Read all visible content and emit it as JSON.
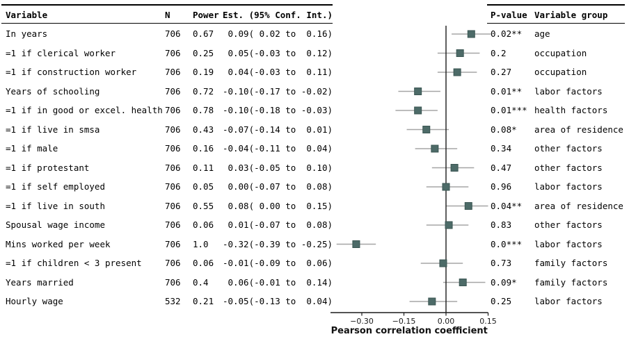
{
  "left_table": {
    "headers": {
      "variable": "Variable",
      "n": "N",
      "power": "Power",
      "est": "Est. (95% Conf. Int.)"
    }
  },
  "right_table": {
    "headers": {
      "pvalue": "P-value",
      "group": "Variable group"
    }
  },
  "rows": [
    {
      "variable": "In years",
      "n": "706",
      "power": "0.67",
      "est": " 0.09( 0.02 to  0.16)",
      "pvalue": "0.02**",
      "group": "age"
    },
    {
      "variable": "=1 if clerical worker",
      "n": "706",
      "power": "0.25",
      "est": " 0.05(-0.03 to  0.12)",
      "pvalue": "0.2",
      "group": "occupation"
    },
    {
      "variable": "=1 if construction worker",
      "n": "706",
      "power": "0.19",
      "est": " 0.04(-0.03 to  0.11)",
      "pvalue": "0.27",
      "group": "occupation"
    },
    {
      "variable": "Years of schooling",
      "n": "706",
      "power": "0.72",
      "est": "-0.10(-0.17 to -0.02)",
      "pvalue": "0.01**",
      "group": "labor factors"
    },
    {
      "variable": "=1 if in good or excel. health",
      "n": "706",
      "power": "0.78",
      "est": "-0.10(-0.18 to -0.03)",
      "pvalue": "0.01***",
      "group": "health factors"
    },
    {
      "variable": "=1 if live in smsa",
      "n": "706",
      "power": "0.43",
      "est": "-0.07(-0.14 to  0.01)",
      "pvalue": "0.08*",
      "group": "area of residence"
    },
    {
      "variable": "=1 if male",
      "n": "706",
      "power": "0.16",
      "est": "-0.04(-0.11 to  0.04)",
      "pvalue": "0.34",
      "group": "other factors"
    },
    {
      "variable": "=1 if protestant",
      "n": "706",
      "power": "0.11",
      "est": " 0.03(-0.05 to  0.10)",
      "pvalue": "0.47",
      "group": "other factors"
    },
    {
      "variable": "=1 if self employed",
      "n": "706",
      "power": "0.05",
      "est": " 0.00(-0.07 to  0.08)",
      "pvalue": "0.96",
      "group": "labor factors"
    },
    {
      "variable": "=1 if live in south",
      "n": "706",
      "power": "0.55",
      "est": " 0.08( 0.00 to  0.15)",
      "pvalue": "0.04**",
      "group": "area of residence"
    },
    {
      "variable": "Spousal wage income",
      "n": "706",
      "power": "0.06",
      "est": " 0.01(-0.07 to  0.08)",
      "pvalue": "0.83",
      "group": "other factors"
    },
    {
      "variable": "Mins worked per week",
      "n": "706",
      "power": "1.0",
      "est": "-0.32(-0.39 to -0.25)",
      "pvalue": "0.0***",
      "group": "labor factors"
    },
    {
      "variable": "=1 if children < 3 present",
      "n": "706",
      "power": "0.06",
      "est": "-0.01(-0.09 to  0.06)",
      "pvalue": "0.73",
      "group": "family factors"
    },
    {
      "variable": "Years married",
      "n": "706",
      "power": "0.4",
      "est": " 0.06(-0.01 to  0.14)",
      "pvalue": "0.09*",
      "group": "family factors"
    },
    {
      "variable": "Hourly wage",
      "n": "532",
      "power": "0.21",
      "est": "-0.05(-0.13 to  0.04)",
      "pvalue": "0.25",
      "group": "labor factors"
    }
  ],
  "chart_data": {
    "type": "scatter",
    "variant": "forest-plot",
    "xlabel": "Pearson correlation coefficient",
    "xlim": [
      -0.42,
      0.17
    ],
    "x_ticks": [
      -0.3,
      -0.15,
      0.0,
      0.15
    ],
    "x_tick_labels": [
      "−0.30",
      "−0.15",
      "0.00",
      "0.15"
    ],
    "zero_line_x": 0,
    "grid": false,
    "legend": "none",
    "points": [
      {
        "label": "In years",
        "est": 0.09,
        "lo": 0.02,
        "hi": 0.16
      },
      {
        "label": "=1 if clerical worker",
        "est": 0.05,
        "lo": -0.03,
        "hi": 0.12
      },
      {
        "label": "=1 if construction worker",
        "est": 0.04,
        "lo": -0.03,
        "hi": 0.11
      },
      {
        "label": "Years of schooling",
        "est": -0.1,
        "lo": -0.17,
        "hi": -0.02
      },
      {
        "label": "=1 if in good or excel. health",
        "est": -0.1,
        "lo": -0.18,
        "hi": -0.03
      },
      {
        "label": "=1 if live in smsa",
        "est": -0.07,
        "lo": -0.14,
        "hi": 0.01
      },
      {
        "label": "=1 if male",
        "est": -0.04,
        "lo": -0.11,
        "hi": 0.04
      },
      {
        "label": "=1 if protestant",
        "est": 0.03,
        "lo": -0.05,
        "hi": 0.1
      },
      {
        "label": "=1 if self employed",
        "est": 0.0,
        "lo": -0.07,
        "hi": 0.08
      },
      {
        "label": "=1 if live in south",
        "est": 0.08,
        "lo": 0.0,
        "hi": 0.15
      },
      {
        "label": "Spousal wage income",
        "est": 0.01,
        "lo": -0.07,
        "hi": 0.08
      },
      {
        "label": "Mins worked per week",
        "est": -0.32,
        "lo": -0.39,
        "hi": -0.25
      },
      {
        "label": "=1 if children < 3 present",
        "est": -0.01,
        "lo": -0.09,
        "hi": 0.06
      },
      {
        "label": "Years married",
        "est": 0.06,
        "lo": -0.01,
        "hi": 0.14
      },
      {
        "label": "Hourly wage",
        "est": -0.05,
        "lo": -0.13,
        "hi": 0.04
      }
    ]
  },
  "colors": {
    "marker_fill": "#4d6b68",
    "marker_border": "#3a5552",
    "ci_line": "#a5a5a5",
    "axis": "#1a1a1a",
    "rule": "#000000",
    "text": "#000000"
  }
}
